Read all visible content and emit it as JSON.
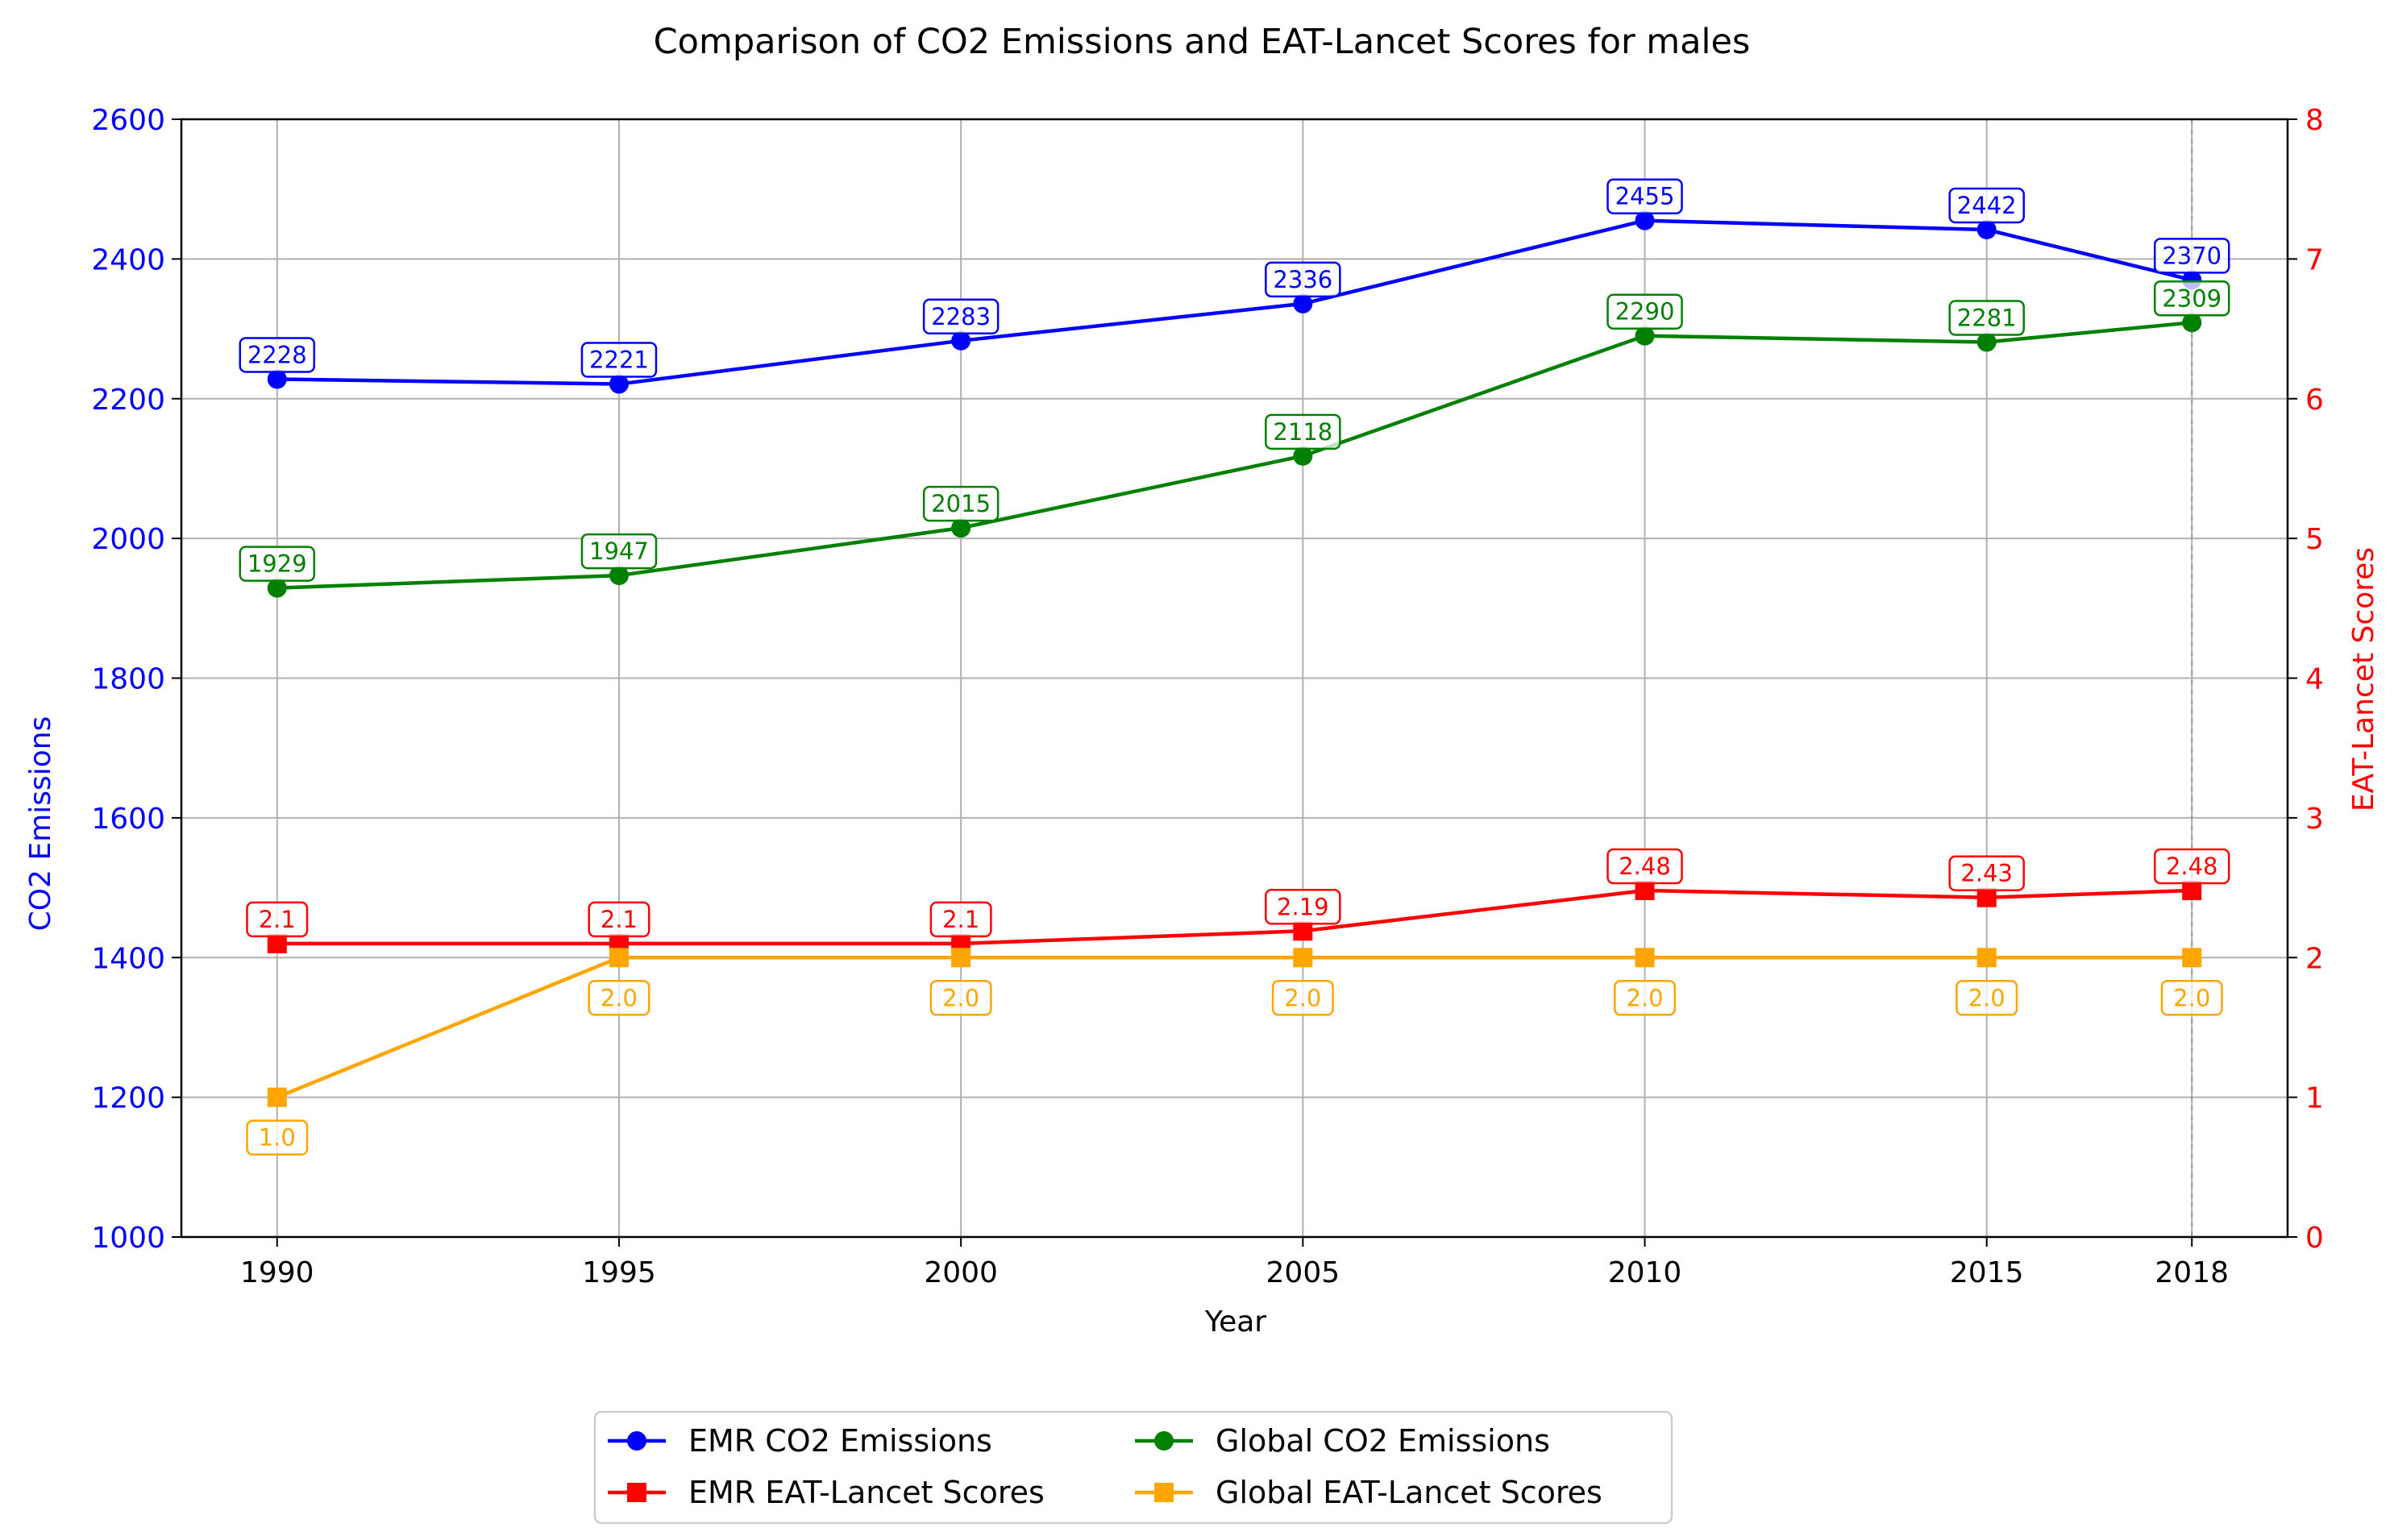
{
  "chart_data": {
    "type": "line",
    "title": "Comparison of CO2 Emissions and EAT-Lancet Scores for males",
    "xlabel": "Year",
    "ylabel_left": "CO2 Emissions",
    "ylabel_right": "EAT-Lancet Scores",
    "x": [
      1990,
      1995,
      2000,
      2005,
      2010,
      2015,
      2018
    ],
    "xlim": [
      1988.6,
      2019.4
    ],
    "ylim_left": [
      1000,
      2600
    ],
    "ylim_right": [
      0,
      8
    ],
    "yticks_left": [
      1000,
      1200,
      1400,
      1600,
      1800,
      2000,
      2200,
      2400,
      2600
    ],
    "yticks_right": [
      0,
      1,
      2,
      3,
      4,
      5,
      6,
      7,
      8
    ],
    "grid": true,
    "legend_position": "bottom-center",
    "series": [
      {
        "name": "EMR CO2 Emissions",
        "axis": "left",
        "marker": "circle",
        "color": "#0000ff",
        "values": [
          2228,
          2221,
          2283,
          2336,
          2455,
          2442,
          2370
        ],
        "labels": [
          "2228",
          "2221",
          "2283",
          "2336",
          "2455",
          "2442",
          "2370"
        ]
      },
      {
        "name": "Global CO2 Emissions",
        "axis": "left",
        "marker": "circle",
        "color": "#008000",
        "values": [
          1929,
          1947,
          2015,
          2118,
          2290,
          2281,
          2309
        ],
        "labels": [
          "1929",
          "1947",
          "2015",
          "2118",
          "2290",
          "2281",
          "2309"
        ]
      },
      {
        "name": "EMR EAT-Lancet Scores",
        "axis": "right",
        "marker": "square",
        "color": "#ff0000",
        "values": [
          2.1,
          2.1,
          2.1,
          2.19,
          2.48,
          2.43,
          2.48
        ],
        "labels": [
          "2.1",
          "2.1",
          "2.1",
          "2.19",
          "2.48",
          "2.43",
          "2.48"
        ]
      },
      {
        "name": "Global EAT-Lancet Scores",
        "axis": "right",
        "marker": "square",
        "color": "#ffa500",
        "values": [
          1.0,
          2.0,
          2.0,
          2.0,
          2.0,
          2.0,
          2.0
        ],
        "labels": [
          "1.0",
          "2.0",
          "2.0",
          "2.0",
          "2.0",
          "2.0",
          "2.0"
        ]
      }
    ],
    "legend_order": [
      0,
      2,
      1,
      3
    ],
    "left_axis_color": "#0000ff",
    "right_axis_color": "#ff0000"
  }
}
